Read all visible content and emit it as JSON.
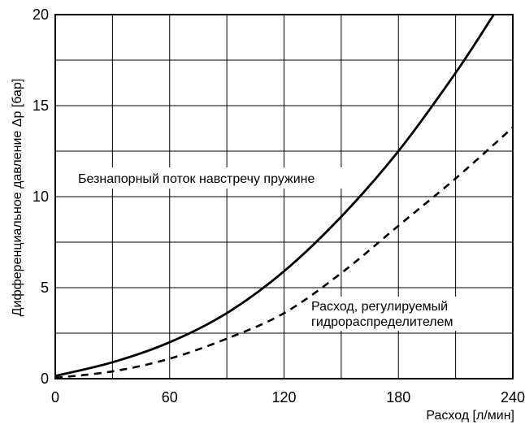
{
  "chart_data": {
    "type": "line",
    "title": "",
    "xlabel": "Расход [л/мин]",
    "ylabel": "Дифференциальное давление Δp [бар]",
    "xlim": [
      0,
      240
    ],
    "ylim": [
      0,
      20
    ],
    "x_ticks": [
      "0",
      "60",
      "120",
      "180",
      "240"
    ],
    "y_ticks": [
      "0",
      "5",
      "10",
      "15",
      "20"
    ],
    "grid": true,
    "series": [
      {
        "style": "solid",
        "x": [
          0,
          30,
          60,
          90,
          120,
          150,
          180,
          210,
          230
        ],
        "y": [
          0.15,
          0.9,
          2.0,
          3.6,
          5.9,
          8.9,
          12.5,
          16.8,
          20.0
        ]
      },
      {
        "style": "dashed",
        "x": [
          0,
          30,
          60,
          90,
          120,
          150,
          180,
          210,
          240
        ],
        "y": [
          0.05,
          0.4,
          1.1,
          2.2,
          3.6,
          5.8,
          8.4,
          11.0,
          13.8
        ]
      }
    ],
    "annotations": [
      {
        "text": "Безнапорный поток навстречу пружине"
      },
      {
        "text": "Расход, регулируемый"
      },
      {
        "text": "гидрораспределителем"
      }
    ]
  }
}
